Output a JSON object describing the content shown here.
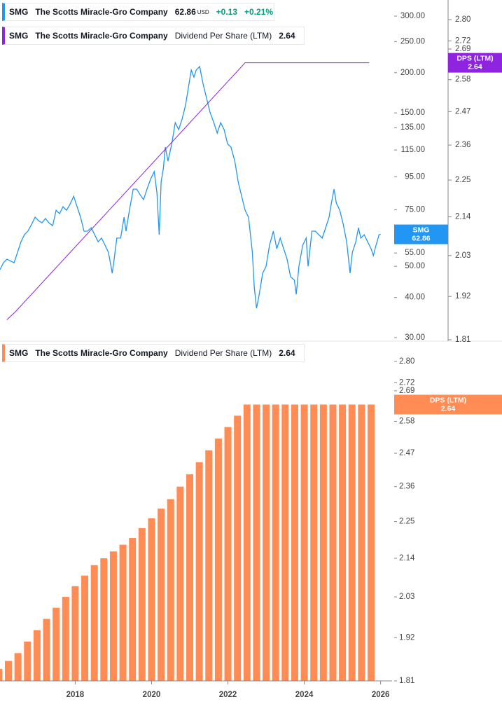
{
  "chart_data": [
    {
      "type": "line",
      "log_scale": true,
      "xlim": [
        2016.03,
        2026.3
      ],
      "ylim": [
        30,
        300
      ],
      "yticks": [
        {
          "value": 300,
          "label": "300.00"
        },
        {
          "value": 250,
          "label": "250.00"
        },
        {
          "value": 200,
          "label": "200.00"
        },
        {
          "value": 150,
          "label": "150.00"
        },
        {
          "value": 135,
          "label": "135.00"
        },
        {
          "value": 115,
          "label": "115.00"
        },
        {
          "value": 95,
          "label": "95.00"
        },
        {
          "value": 75,
          "label": "75.00"
        },
        {
          "value": 55,
          "label": "55.00"
        },
        {
          "value": 50,
          "label": "50.00"
        },
        {
          "value": 40,
          "label": "40.00"
        },
        {
          "value": 30,
          "label": "30.00"
        }
      ],
      "y2lim": [
        1.81,
        2.8
      ],
      "y2ticks": [
        {
          "value": 2.8,
          "label": "2.80"
        },
        2.72,
        2.69,
        2.58,
        2.47,
        2.36,
        2.25,
        2.14,
        2.03,
        1.92,
        1.81
      ],
      "series": [
        {
          "name": "The Scotts Miracle-Gro Company",
          "ticker": "SMG",
          "currency": "USD",
          "change": "+0.13",
          "change_percent": "+0.21%",
          "color": "#2196f3",
          "x": [
            2016.03,
            2016.12,
            2016.21,
            2016.4,
            2016.49,
            2016.58,
            2016.67,
            2016.76,
            2016.86,
            2016.95,
            2017.04,
            2017.13,
            2017.22,
            2017.31,
            2017.41,
            2017.5,
            2017.59,
            2017.68,
            2017.77,
            2017.86,
            2017.96,
            2018.05,
            2018.14,
            2018.23,
            2018.32,
            2018.42,
            2018.51,
            2018.6,
            2018.69,
            2018.78,
            2018.87,
            2018.97,
            2019.02,
            2019.09,
            2019.19,
            2019.28,
            2019.33,
            2019.42,
            2019.52,
            2019.61,
            2019.7,
            2019.79,
            2019.88,
            2019.98,
            2020.07,
            2020.14,
            2020.2,
            2020.25,
            2020.31,
            2020.36,
            2020.43,
            2020.53,
            2020.62,
            2020.71,
            2020.8,
            2020.89,
            2020.98,
            2021.04,
            2021.11,
            2021.17,
            2021.26,
            2021.35,
            2021.44,
            2021.53,
            2021.63,
            2021.72,
            2021.81,
            2021.9,
            2021.99,
            2022.08,
            2022.18,
            2022.27,
            2022.36,
            2022.45,
            2022.54,
            2022.64,
            2022.69,
            2022.75,
            2022.82,
            2022.91,
            2023.0,
            2023.09,
            2023.19,
            2023.28,
            2023.37,
            2023.46,
            2023.55,
            2023.64,
            2023.74,
            2023.79,
            2023.86,
            2023.96,
            2024.05,
            2024.1,
            2024.2,
            2024.29,
            2024.38,
            2024.47,
            2024.56,
            2024.65,
            2024.71,
            2024.78,
            2024.84,
            2024.93,
            2025.02,
            2025.11,
            2025.2,
            2025.26,
            2025.35,
            2025.42,
            2025.48,
            2025.57,
            2025.66,
            2025.75,
            2025.81,
            2025.88,
            2025.96,
            2026.0
          ],
          "values": [
            48.8,
            51.3,
            52.6,
            51.3,
            55.3,
            59.6,
            62.7,
            64.3,
            67.6,
            71.1,
            69.3,
            68.3,
            70.4,
            68.3,
            66.9,
            74.7,
            72.9,
            76.6,
            74.7,
            77.8,
            82.6,
            76.6,
            71.1,
            64.3,
            64.3,
            65.9,
            62.7,
            59.6,
            61.2,
            58.2,
            55.3,
            47.6,
            52.6,
            61.2,
            61.2,
            71.1,
            64.3,
            74.7,
            86.9,
            86.9,
            83.5,
            80.6,
            86.9,
            93.7,
            98.5,
            84.8,
            62.7,
            91.4,
            101.0,
            117.4,
            106.2,
            120.3,
            139.9,
            133.1,
            143.5,
            158.6,
            184.4,
            203.9,
            193.9,
            203.9,
            209.1,
            184.4,
            166.8,
            150.9,
            139.9,
            129.8,
            139.9,
            133.1,
            120.3,
            117.4,
            106.2,
            91.4,
            82.6,
            74.7,
            71.1,
            55.3,
            43.1,
            37.0,
            40.9,
            47.6,
            50.0,
            58.2,
            64.3,
            56.7,
            61.2,
            56.7,
            52.6,
            46.4,
            45.3,
            40.9,
            50.0,
            58.2,
            61.2,
            50.0,
            64.3,
            64.3,
            62.7,
            61.2,
            65.9,
            71.1,
            78.6,
            86.9,
            78.6,
            74.7,
            67.6,
            59.6,
            47.6,
            55.3,
            59.6,
            65.9,
            61.2,
            62.7,
            59.6,
            56.7,
            54.0,
            58.2,
            62.7,
            62.86
          ]
        },
        {
          "name": "Dividend Per Share (LTM)",
          "badge": "DPS (LTM)",
          "color": "#8e24e0",
          "axis": "y2",
          "x": [
            2016.21,
            2016.43,
            2022.45,
            2025.7
          ],
          "values": [
            1.86,
            1.88,
            2.64,
            2.64
          ]
        }
      ]
    },
    {
      "type": "bar",
      "log_scale": true,
      "ticker": "SMG",
      "company": "The Scotts Miracle-Gro Company",
      "name": "Dividend Per Share (LTM)",
      "badge": "DPS (LTM)",
      "color": "#ff8c55",
      "xlim": [
        2016.03,
        2026.3
      ],
      "xticks": [
        2018,
        2020,
        2022,
        2024,
        2026
      ],
      "ylim": [
        1.81,
        2.8
      ],
      "yticks": [
        {
          "value": 2.8,
          "label": "2.80"
        },
        2.72,
        2.69,
        2.58,
        2.47,
        2.36,
        2.25,
        2.14,
        2.03,
        1.92,
        1.81
      ],
      "x": [
        2016.0,
        2016.25,
        2016.5,
        2016.75,
        2017.0,
        2017.25,
        2017.5,
        2017.75,
        2018.0,
        2018.25,
        2018.5,
        2018.75,
        2019.0,
        2019.25,
        2019.5,
        2019.75,
        2020.0,
        2020.25,
        2020.5,
        2020.75,
        2021.0,
        2021.25,
        2021.5,
        2021.75,
        2022.0,
        2022.25,
        2022.5,
        2022.75,
        2023.0,
        2023.25,
        2023.5,
        2023.75,
        2024.0,
        2024.25,
        2024.5,
        2024.75,
        2025.0,
        2025.25,
        2025.5,
        2025.75
      ],
      "values": [
        1.84,
        1.86,
        1.88,
        1.91,
        1.94,
        1.97,
        2.0,
        2.03,
        2.06,
        2.09,
        2.12,
        2.14,
        2.16,
        2.18,
        2.2,
        2.23,
        2.26,
        2.29,
        2.32,
        2.36,
        2.4,
        2.44,
        2.48,
        2.52,
        2.56,
        2.6,
        2.64,
        2.64,
        2.64,
        2.64,
        2.64,
        2.64,
        2.64,
        2.64,
        2.64,
        2.64,
        2.64,
        2.64,
        2.64,
        2.64
      ]
    }
  ]
}
